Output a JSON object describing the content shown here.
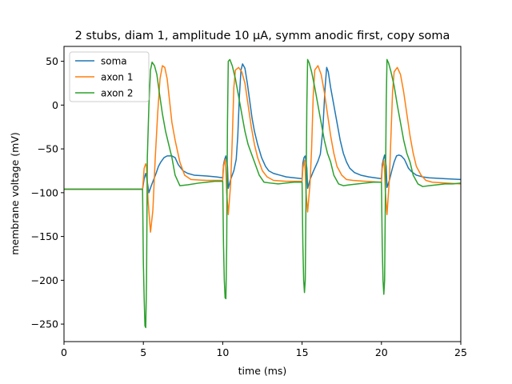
{
  "chart_data": {
    "type": "line",
    "title": "2 stubs, diam 1, amplitude 10 µA, symm anodic first, copy soma",
    "xlabel": "time (ms)",
    "ylabel": "membrane voltage (mV)",
    "xlim": [
      0,
      25
    ],
    "ylim": [
      -270,
      67
    ],
    "xticks": [
      0,
      5,
      10,
      15,
      20,
      25
    ],
    "yticks": [
      -250,
      -200,
      -150,
      -100,
      -50,
      0,
      50
    ],
    "grid": false,
    "legend": "top-left",
    "series": [
      {
        "name": "soma",
        "color": "#1f77b4",
        "x": [
          0,
          4.95,
          5.0,
          5.05,
          5.15,
          5.2,
          5.35,
          5.5,
          5.65,
          5.8,
          5.95,
          6.1,
          6.3,
          6.5,
          6.8,
          7.0,
          7.2,
          7.5,
          7.8,
          8.2,
          9.0,
          9.6,
          10.0,
          10.05,
          10.12,
          10.2,
          10.3,
          10.35,
          10.5,
          10.7,
          10.85,
          10.95,
          11.05,
          11.15,
          11.25,
          11.4,
          11.55,
          11.7,
          11.85,
          12.0,
          12.2,
          12.45,
          12.7,
          12.9,
          13.2,
          13.6,
          14.0,
          14.5,
          15.0,
          15.05,
          15.12,
          15.2,
          15.3,
          15.35,
          15.5,
          15.7,
          15.85,
          16.0,
          16.15,
          16.3,
          16.45,
          16.55,
          16.65,
          16.8,
          17.0,
          17.2,
          17.4,
          17.6,
          17.8,
          18.0,
          18.3,
          18.7,
          19.2,
          20.0,
          20.05,
          20.12,
          20.2,
          20.3,
          20.35,
          20.5,
          20.65,
          20.8,
          20.95,
          21.1,
          21.25,
          21.45,
          21.7,
          21.9,
          22.2,
          22.6,
          23.0,
          24.0,
          25.0
        ],
        "values": [
          -96,
          -96,
          -90,
          -84,
          -78,
          -82,
          -100,
          -92,
          -85,
          -78,
          -70,
          -65,
          -60,
          -58,
          -58,
          -60,
          -68,
          -75,
          -78,
          -80,
          -81,
          -82,
          -83,
          -68,
          -62,
          -58,
          -70,
          -95,
          -85,
          -75,
          -62,
          -35,
          10,
          40,
          47,
          42,
          25,
          5,
          -15,
          -30,
          -45,
          -60,
          -70,
          -75,
          -78,
          -80,
          -82,
          -83,
          -84,
          -66,
          -60,
          -58,
          -72,
          -95,
          -85,
          -76,
          -70,
          -64,
          -56,
          -30,
          20,
          43,
          38,
          20,
          0,
          -20,
          -40,
          -55,
          -65,
          -72,
          -77,
          -80,
          -82,
          -84,
          -68,
          -62,
          -57,
          -70,
          -94,
          -86,
          -75,
          -65,
          -58,
          -57,
          -58,
          -62,
          -72,
          -76,
          -80,
          -82,
          -83,
          -84,
          -85
        ]
      },
      {
        "name": "axon 1",
        "color": "#ff7f0e",
        "x": [
          0,
          4.95,
          5.0,
          5.05,
          5.15,
          5.2,
          5.3,
          5.45,
          5.6,
          5.75,
          5.9,
          6.05,
          6.2,
          6.35,
          6.5,
          6.65,
          6.8,
          7.0,
          7.3,
          7.6,
          8.0,
          9.0,
          10.0,
          10.05,
          10.15,
          10.2,
          10.25,
          10.35,
          10.5,
          10.6,
          10.7,
          10.8,
          11.0,
          11.2,
          11.4,
          11.6,
          11.8,
          12.0,
          12.2,
          12.5,
          12.8,
          13.2,
          14.0,
          15.0,
          15.05,
          15.15,
          15.2,
          15.25,
          15.35,
          15.5,
          15.6,
          15.7,
          15.8,
          16.0,
          16.2,
          16.4,
          16.6,
          16.8,
          17.0,
          17.2,
          17.5,
          17.8,
          18.2,
          19.0,
          20.0,
          20.05,
          20.15,
          20.2,
          20.25,
          20.35,
          20.5,
          20.6,
          20.7,
          20.8,
          21.0,
          21.2,
          21.4,
          21.6,
          21.8,
          22.0,
          22.2,
          22.5,
          22.8,
          23.2,
          24.0,
          25.0
        ],
        "values": [
          -96,
          -96,
          -85,
          -72,
          -67,
          -70,
          -110,
          -145,
          -120,
          -60,
          -10,
          30,
          45,
          43,
          30,
          5,
          -20,
          -40,
          -65,
          -80,
          -85,
          -86,
          -86,
          -70,
          -62,
          -75,
          -100,
          -125,
          -90,
          -40,
          20,
          40,
          43,
          38,
          25,
          0,
          -25,
          -45,
          -60,
          -75,
          -82,
          -86,
          -87,
          -87,
          -72,
          -63,
          -75,
          -100,
          -122,
          -90,
          -50,
          10,
          40,
          45,
          35,
          15,
          -10,
          -35,
          -55,
          -70,
          -80,
          -85,
          -86,
          -87,
          -88,
          -72,
          -63,
          -75,
          -100,
          -125,
          -85,
          -35,
          15,
          38,
          43,
          35,
          15,
          -10,
          -35,
          -55,
          -70,
          -80,
          -86,
          -88,
          -89,
          -90
        ]
      },
      {
        "name": "axon 2",
        "color": "#2ca02c",
        "x": [
          0,
          4.95,
          5.0,
          5.05,
          5.1,
          5.15,
          5.2,
          5.25,
          5.35,
          5.45,
          5.55,
          5.7,
          5.85,
          6.0,
          6.2,
          6.4,
          6.6,
          6.8,
          7.0,
          7.3,
          7.8,
          8.5,
          9.0,
          9.5,
          10.0,
          10.05,
          10.1,
          10.15,
          10.2,
          10.25,
          10.3,
          10.35,
          10.45,
          10.6,
          10.8,
          11.0,
          11.2,
          11.4,
          11.6,
          11.8,
          12.0,
          12.3,
          12.6,
          13.0,
          13.5,
          14.0,
          14.5,
          15.0,
          15.05,
          15.1,
          15.15,
          15.2,
          15.25,
          15.3,
          15.35,
          15.45,
          15.6,
          15.8,
          16.0,
          16.2,
          16.4,
          16.6,
          16.8,
          17.0,
          17.3,
          17.6,
          18.0,
          18.5,
          19.0,
          19.5,
          20.0,
          20.05,
          20.1,
          20.15,
          20.2,
          20.25,
          20.3,
          20.35,
          20.45,
          20.6,
          20.8,
          21.0,
          21.2,
          21.4,
          21.6,
          21.8,
          22.0,
          22.3,
          22.6,
          23.0,
          23.5,
          24.0,
          24.5,
          25.0
        ],
        "values": [
          -96,
          -96,
          -180,
          -220,
          -252,
          -254,
          -200,
          -60,
          0,
          40,
          49,
          45,
          35,
          15,
          -10,
          -30,
          -45,
          -60,
          -80,
          -92,
          -91,
          -89,
          -88,
          -87,
          -87,
          -160,
          -200,
          -220,
          -221,
          -160,
          -20,
          50,
          52,
          45,
          30,
          10,
          -10,
          -30,
          -45,
          -55,
          -65,
          -80,
          -88,
          -89,
          -90,
          -89,
          -88,
          -88,
          -160,
          -200,
          -214,
          -200,
          -100,
          0,
          52,
          48,
          38,
          20,
          0,
          -20,
          -40,
          -55,
          -65,
          -80,
          -90,
          -92,
          -91,
          -90,
          -89,
          -88,
          -88,
          -160,
          -200,
          -216,
          -200,
          -100,
          0,
          52,
          48,
          38,
          22,
          0,
          -20,
          -40,
          -55,
          -65,
          -80,
          -90,
          -93,
          -92,
          -91,
          -90,
          -90,
          -89
        ]
      }
    ]
  }
}
